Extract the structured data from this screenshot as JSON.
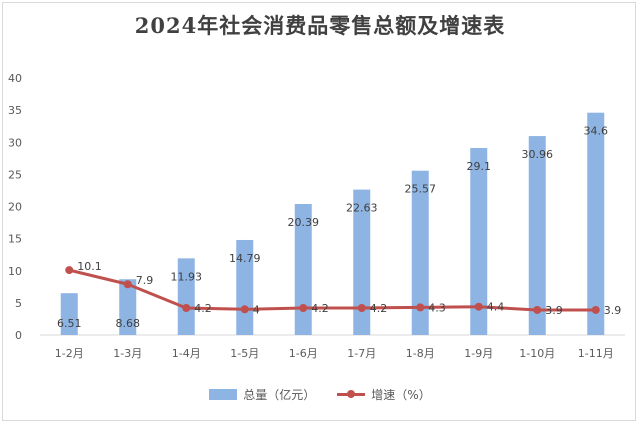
{
  "chart_data": {
    "type": "bar",
    "title": "2024年社会消费品零售总额及增速表",
    "categories": [
      "1-2月",
      "1-3月",
      "1-4月",
      "1-5月",
      "1-6月",
      "1-7月",
      "1-8月",
      "1-9月",
      "1-10月",
      "1-11月"
    ],
    "series": [
      {
        "name": "总量（亿元）",
        "type": "bar",
        "color": "#8eb4e3",
        "values": [
          6.51,
          8.68,
          11.93,
          14.79,
          20.39,
          22.63,
          25.57,
          29.1,
          30.96,
          34.6
        ],
        "labels": [
          "6.51",
          "8.68",
          "11.93",
          "14.79",
          "20.39",
          "22.63",
          "25.57",
          "29.1",
          "30.96",
          "34.6"
        ]
      },
      {
        "name": "增速（%）",
        "type": "line",
        "color": "#c0504d",
        "values": [
          10.1,
          7.9,
          4.2,
          4.0,
          4.2,
          4.2,
          4.3,
          4.4,
          3.9,
          3.9
        ],
        "labels": [
          "10.1",
          "7.9",
          "4.2",
          "4",
          "4.2",
          "4.2",
          "4.3",
          "4.4",
          "3.9",
          "3.9"
        ]
      }
    ],
    "ylim": [
      0,
      40
    ],
    "yticks": [
      "0",
      "5",
      "10",
      "15",
      "20",
      "25",
      "30",
      "35",
      "40"
    ],
    "grid": false,
    "legend": "bottom"
  }
}
